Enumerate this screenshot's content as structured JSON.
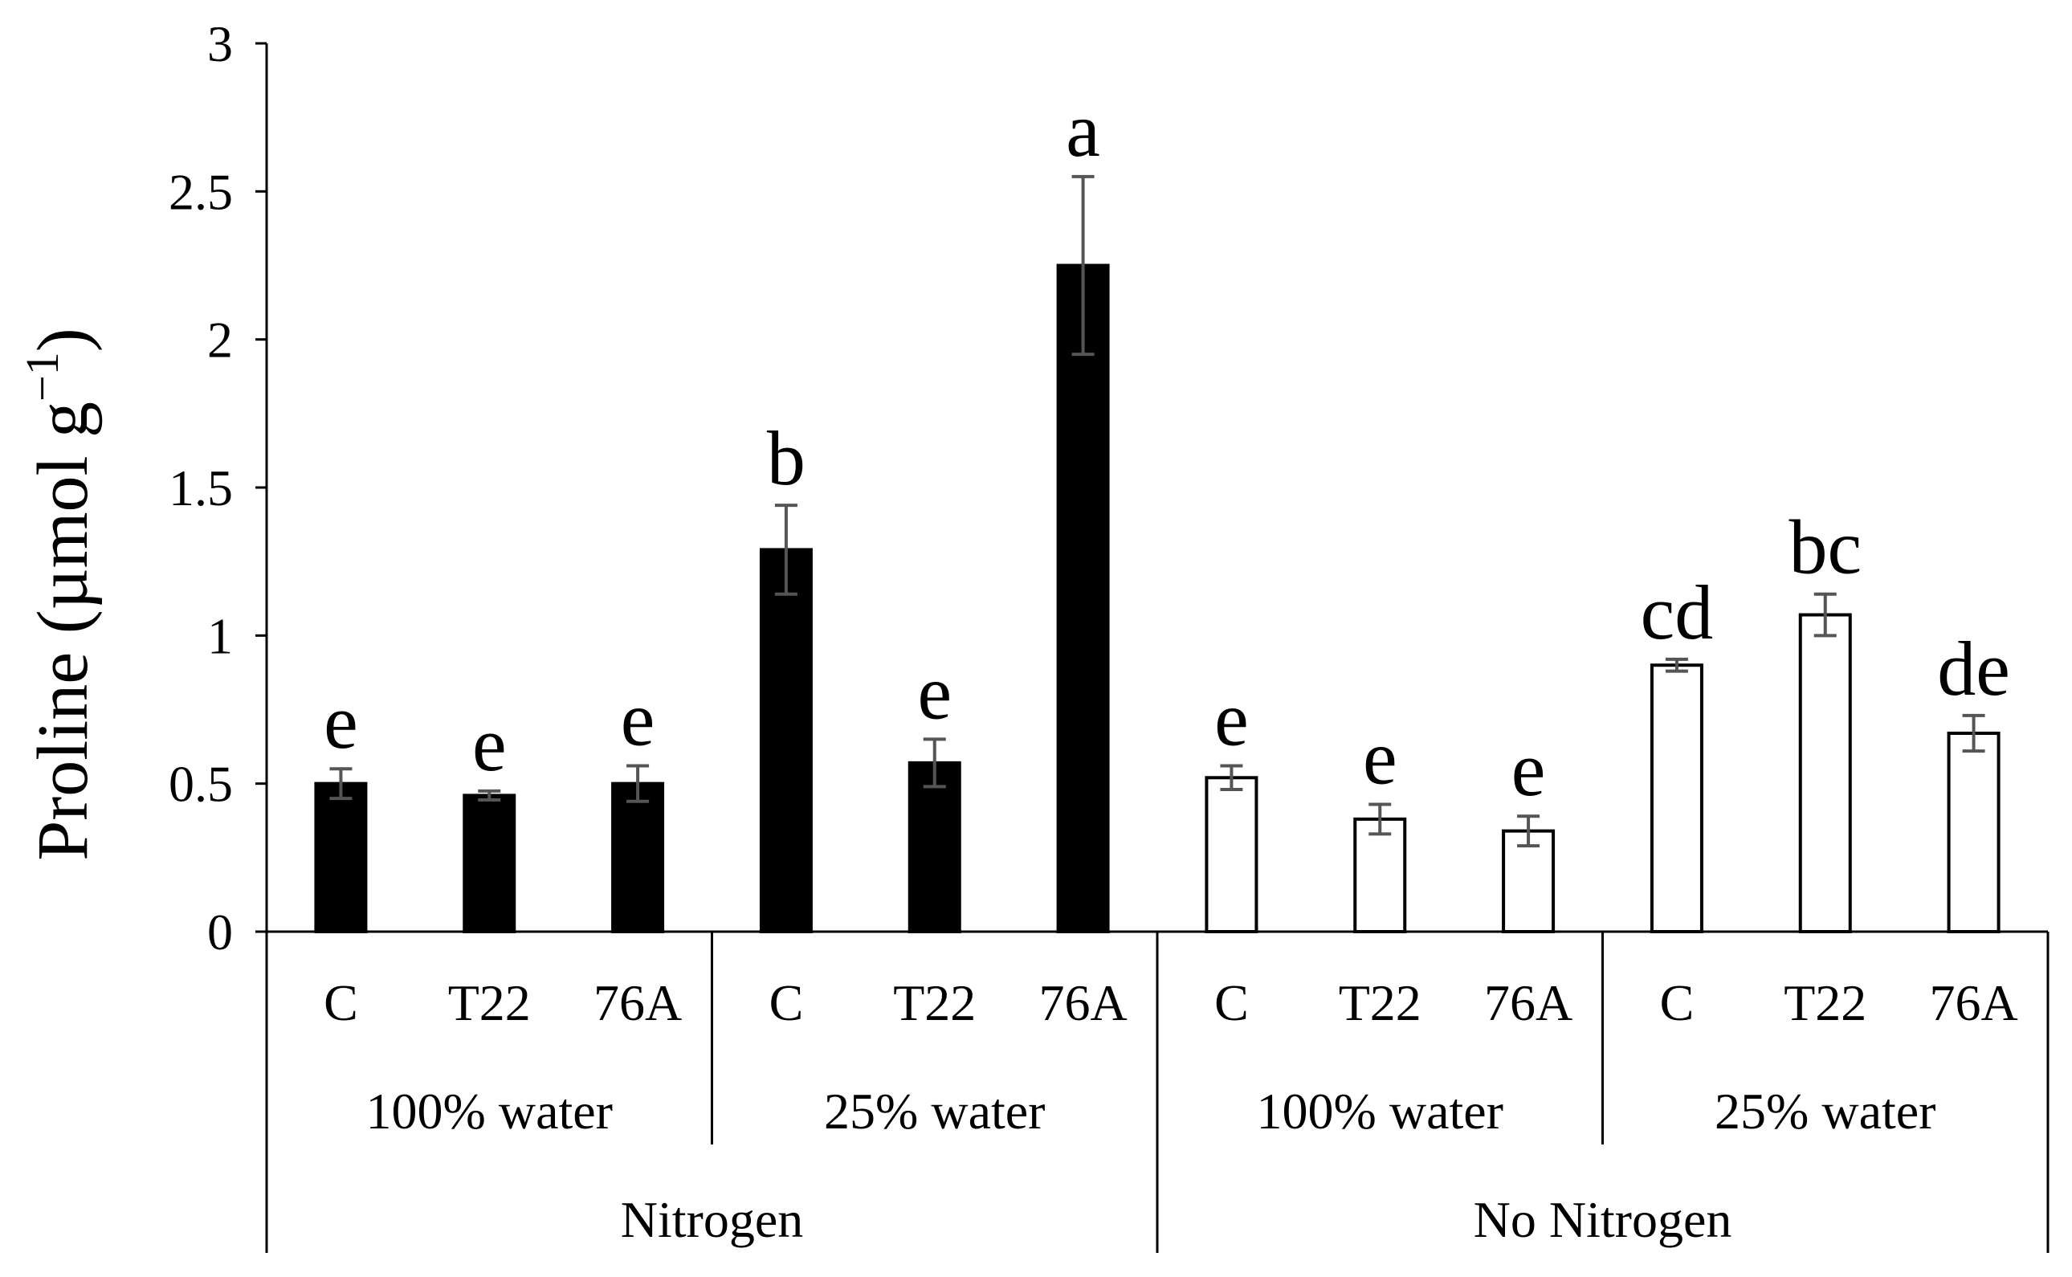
{
  "chart_data": {
    "type": "bar",
    "title": "",
    "ylabel": "Proline (µmol g",
    "ylabel_superscript": "−1",
    "ylabel_close": ")",
    "ylim": [
      0,
      3
    ],
    "yticks": [
      "0",
      "0.5",
      "1",
      "1.5",
      "2",
      "2.5",
      "3"
    ],
    "ytick_values": [
      0,
      0.5,
      1,
      1.5,
      2,
      2.5,
      3
    ],
    "categories": [
      "C",
      "T22",
      "76A",
      "C",
      "T22",
      "76A",
      "C",
      "T22",
      "76A",
      "C",
      "T22",
      "76A"
    ],
    "values": [
      0.5,
      0.46,
      0.5,
      1.29,
      0.57,
      2.25,
      0.52,
      0.38,
      0.34,
      0.9,
      1.07,
      0.67
    ],
    "errors": [
      0.05,
      0.015,
      0.06,
      0.15,
      0.08,
      0.3,
      0.04,
      0.05,
      0.05,
      0.02,
      0.07,
      0.06
    ],
    "letters": [
      "e",
      "e",
      "e",
      "b",
      "e",
      "a",
      "e",
      "e",
      "e",
      "cd",
      "bc",
      "de"
    ],
    "fills": [
      "#000000",
      "#000000",
      "#000000",
      "#000000",
      "#000000",
      "#000000",
      "#ffffff",
      "#ffffff",
      "#ffffff",
      "#ffffff",
      "#ffffff",
      "#ffffff"
    ],
    "water_groups": [
      {
        "label": "100% water",
        "start": 0,
        "end": 2
      },
      {
        "label": "25% water",
        "start": 3,
        "end": 5
      },
      {
        "label": "100% water",
        "start": 6,
        "end": 8
      },
      {
        "label": "25% water",
        "start": 9,
        "end": 11
      }
    ],
    "nitrogen_groups": [
      {
        "label": "Nitrogen",
        "start": 0,
        "end": 5
      },
      {
        "label": "No Nitrogen",
        "start": 6,
        "end": 11
      }
    ],
    "colors": {
      "bar_outline": "#000000",
      "error_bar": "#555555",
      "axis": "#000000"
    }
  }
}
